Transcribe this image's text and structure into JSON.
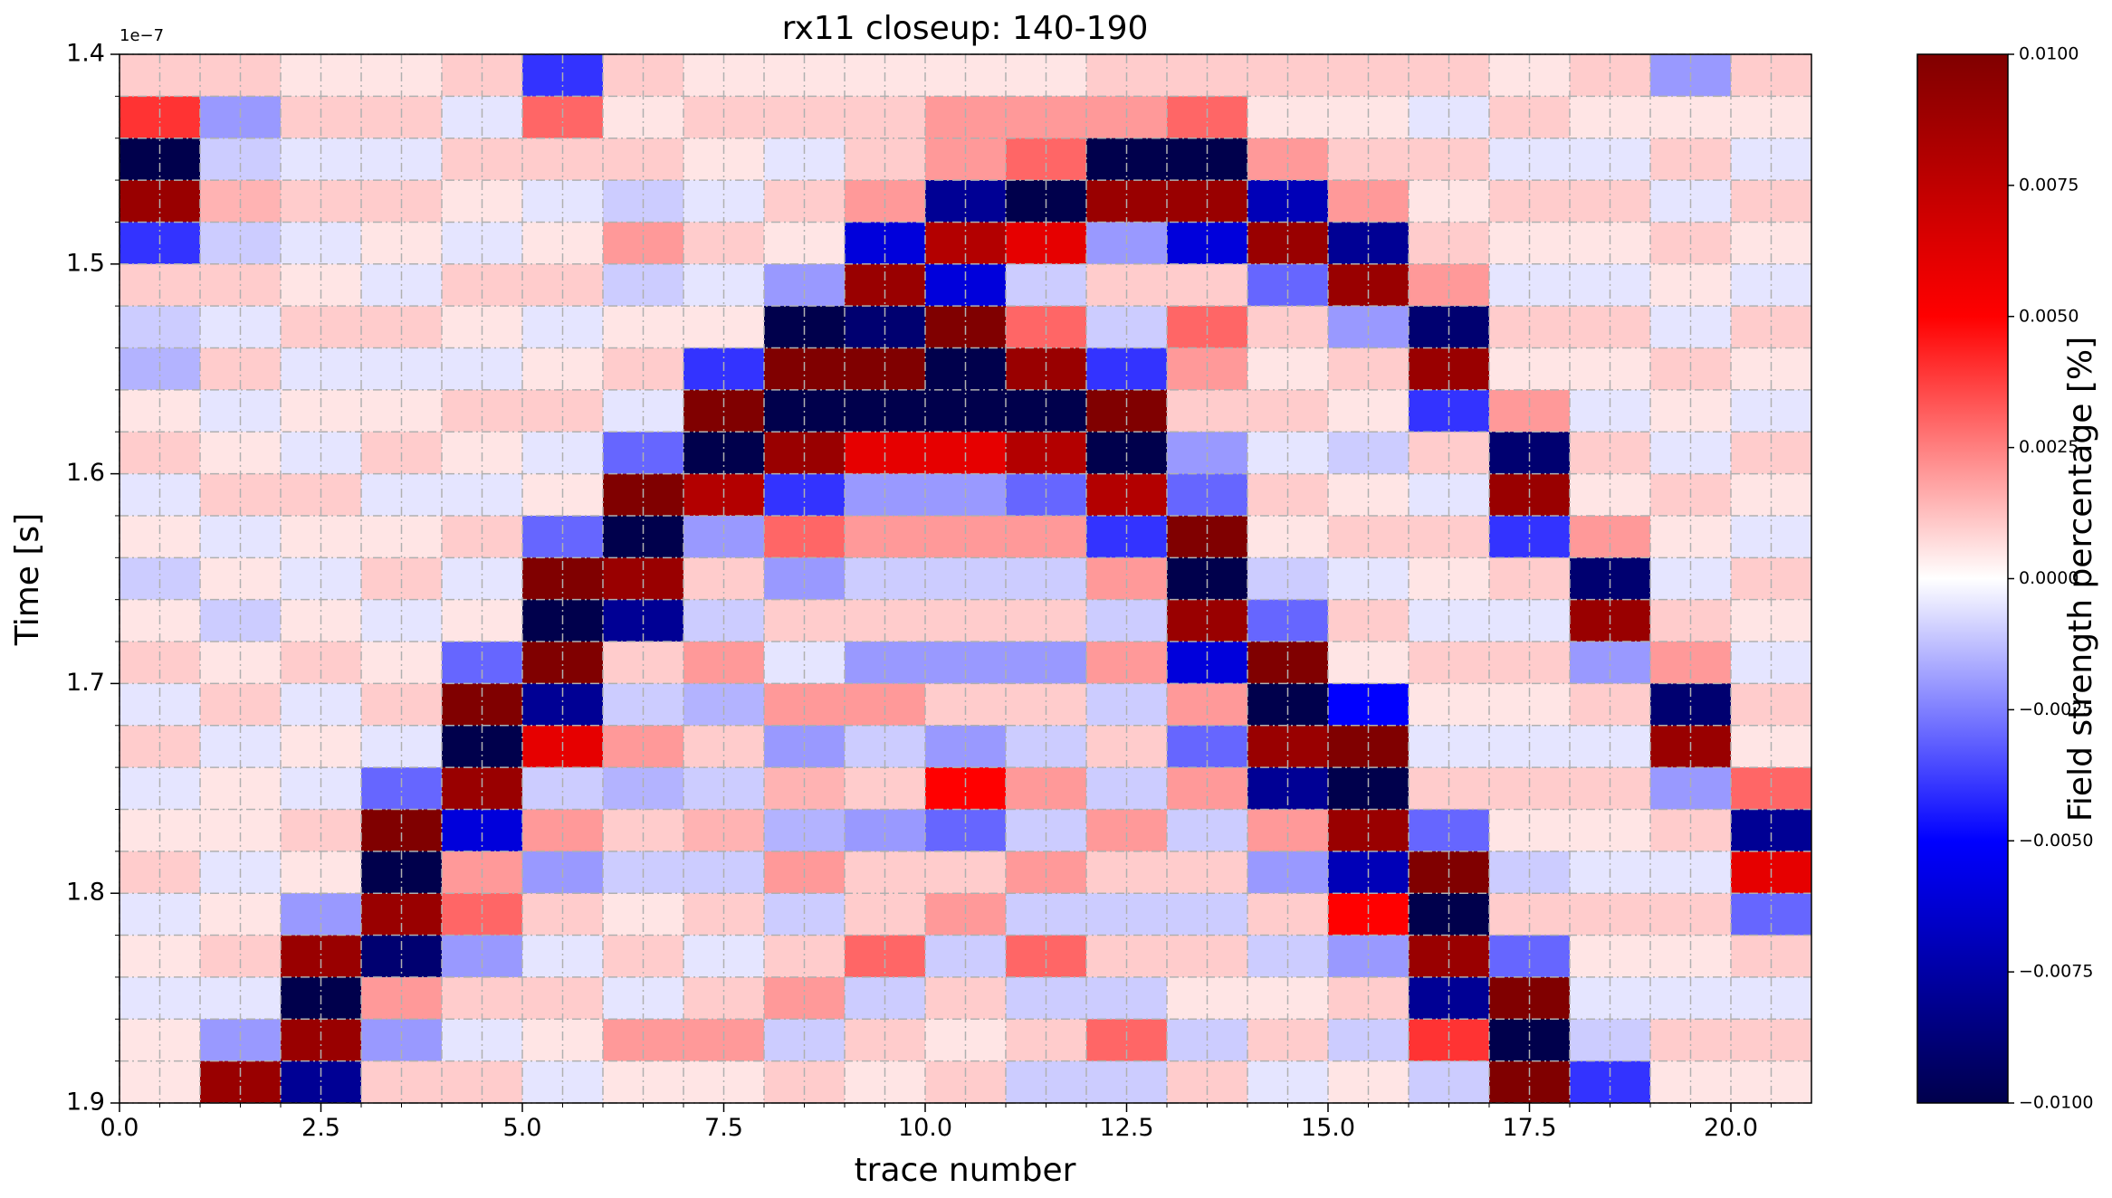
{
  "chart_data": {
    "type": "heatmap",
    "title": "rx11 closeup: 140-190",
    "xlabel": "trace number",
    "ylabel": "Time [s]",
    "y_offset_text": "1e−7",
    "colorbar_label": "Field strength percentage [%]",
    "colormap": [
      "#00004c",
      "#0000ff",
      "#ffffff",
      "#ff0000",
      "#800000"
    ],
    "clim": [
      -0.01,
      0.01
    ],
    "xlim": [
      0,
      21
    ],
    "ylim": [
      1.9e-07,
      1.4e-07
    ],
    "xticks": [
      {
        "value": 0,
        "label": "0.0"
      },
      {
        "value": 2.5,
        "label": "2.5"
      },
      {
        "value": 5,
        "label": "5.0"
      },
      {
        "value": 7.5,
        "label": "7.5"
      },
      {
        "value": 10,
        "label": "10.0"
      },
      {
        "value": 12.5,
        "label": "12.5"
      },
      {
        "value": 15,
        "label": "15.0"
      },
      {
        "value": 17.5,
        "label": "17.5"
      },
      {
        "value": 20,
        "label": "20.0"
      }
    ],
    "xminorticks": [
      0.5,
      1,
      1.5,
      2,
      3,
      3.5,
      4,
      4.5,
      5.5,
      6,
      6.5,
      7,
      8,
      8.5,
      9,
      9.5,
      10.5,
      11,
      11.5,
      12,
      13,
      13.5,
      14,
      14.5,
      15.5,
      16,
      16.5,
      17,
      18,
      18.5,
      19,
      19.5,
      20.5
    ],
    "yticks": [
      {
        "value": 1.4e-07,
        "label": "1.4"
      },
      {
        "value": 1.5e-07,
        "label": "1.5"
      },
      {
        "value": 1.6e-07,
        "label": "1.6"
      },
      {
        "value": 1.7e-07,
        "label": "1.7"
      },
      {
        "value": 1.8e-07,
        "label": "1.8"
      },
      {
        "value": 1.9e-07,
        "label": "1.9"
      }
    ],
    "yminorticks": [
      1.42e-07,
      1.44e-07,
      1.46e-07,
      1.48e-07,
      1.52e-07,
      1.54e-07,
      1.56e-07,
      1.58e-07,
      1.62e-07,
      1.64e-07,
      1.66e-07,
      1.68e-07,
      1.72e-07,
      1.74e-07,
      1.76e-07,
      1.78e-07,
      1.82e-07,
      1.84e-07,
      1.86e-07,
      1.88e-07
    ],
    "ctick": [
      {
        "value": -0.01,
        "label": "−0.0100"
      },
      {
        "value": -0.0075,
        "label": "−0.0075"
      },
      {
        "value": -0.005,
        "label": "−0.0050"
      },
      {
        "value": -0.0025,
        "label": "−0.0025"
      },
      {
        "value": 0,
        "label": "0.0000"
      },
      {
        "value": 0.0025,
        "label": "0.0025"
      },
      {
        "value": 0.005,
        "label": "0.0050"
      },
      {
        "value": 0.0075,
        "label": "0.0075"
      },
      {
        "value": 0.01,
        "label": "0.0100"
      }
    ],
    "grid": true,
    "x_edges": [
      0,
      1,
      2,
      3,
      4,
      5,
      6,
      7,
      8,
      9,
      10,
      11,
      12,
      13,
      14,
      15,
      16,
      17,
      18,
      19,
      20,
      21
    ],
    "y_edges": [
      1.4e-07,
      1.42e-07,
      1.44e-07,
      1.46e-07,
      1.48e-07,
      1.5e-07,
      1.52e-07,
      1.54e-07,
      1.56e-07,
      1.58e-07,
      1.6e-07,
      1.62e-07,
      1.64e-07,
      1.66e-07,
      1.68e-07,
      1.7e-07,
      1.72e-07,
      1.74e-07,
      1.76e-07,
      1.78e-07,
      1.8e-07,
      1.82e-07,
      1.84e-07,
      1.86e-07,
      1.88e-07,
      1.9e-07
    ],
    "values": [
      [
        0.001,
        0.004,
        -0.01,
        0.009,
        -0.004,
        0.001,
        -0.001,
        -0.0015,
        0.0005,
        0.001,
        -0.0005,
        0.0005,
        -0.001,
        0.0005,
        0.001,
        -0.0005,
        0.001,
        -0.0005,
        0.0005,
        0.001,
        -0.0005,
        0.0005,
        -0.0005,
        0.0005,
        0.0005
      ],
      [
        0.001,
        -0.002,
        -0.001,
        0.0015,
        -0.001,
        0.001,
        -0.0005,
        0.001,
        -0.0005,
        0.0005,
        0.001,
        -0.0005,
        0.0005,
        -0.001,
        0.0005,
        0.001,
        -0.0005,
        0.0005,
        0.0005,
        -0.0005,
        0.0005,
        0.001,
        -0.0005,
        -0.002,
        0.009
      ],
      [
        0.0005,
        0.001,
        -0.0005,
        0.001,
        -0.0005,
        0.0005,
        0.001,
        -0.0005,
        0.0005,
        -0.0005,
        0.001,
        0.0005,
        -0.0005,
        0.0005,
        0.001,
        -0.0005,
        0.0005,
        -0.0005,
        0.001,
        0.0005,
        -0.002,
        0.009,
        -0.01,
        0.009,
        -0.008
      ],
      [
        0.0005,
        0.001,
        -0.0005,
        0.001,
        0.0005,
        -0.0005,
        0.001,
        -0.0005,
        0.0005,
        0.001,
        -0.0005,
        0.0005,
        0.001,
        -0.0005,
        0.0005,
        0.001,
        -0.0005,
        -0.003,
        0.01,
        -0.01,
        0.009,
        -0.009,
        0.002,
        -0.002,
        0.001
      ],
      [
        0.001,
        -0.0005,
        0.001,
        0.0005,
        -0.0005,
        0.001,
        0.0005,
        -0.0005,
        0.001,
        0.0005,
        -0.0005,
        0.001,
        -0.0005,
        0.0005,
        -0.003,
        0.01,
        -0.01,
        0.009,
        -0.006,
        0.002,
        0.003,
        -0.002,
        0.001,
        -0.0005,
        0.001
      ],
      [
        -0.004,
        0.003,
        0.001,
        -0.0005,
        0.0005,
        0.001,
        -0.0005,
        0.0005,
        0.001,
        -0.0005,
        0.0005,
        -0.003,
        0.01,
        -0.01,
        0.01,
        -0.008,
        0.006,
        -0.001,
        0.002,
        -0.002,
        0.001,
        -0.0005,
        0.001,
        0.0005,
        -0.0005
      ],
      [
        0.001,
        0.0005,
        0.001,
        -0.001,
        0.002,
        -0.001,
        0.0005,
        0.001,
        -0.0005,
        -0.003,
        0.01,
        -0.01,
        0.009,
        -0.008,
        0.001,
        -0.001,
        0.002,
        -0.0015,
        0.001,
        -0.001,
        0.0005,
        0.001,
        -0.0005,
        0.002,
        0.0005
      ],
      [
        0.0005,
        0.001,
        0.0005,
        -0.0005,
        0.001,
        -0.0005,
        0.0005,
        -0.004,
        0.01,
        -0.01,
        0.008,
        -0.002,
        0.001,
        -0.001,
        0.002,
        -0.0015,
        0.001,
        -0.001,
        0.0015,
        -0.001,
        0.001,
        -0.0005,
        0.001,
        0.002,
        0.0005
      ],
      [
        0.0005,
        0.001,
        -0.0005,
        0.001,
        0.0005,
        -0.002,
        -0.01,
        0.01,
        -0.01,
        0.009,
        -0.004,
        0.003,
        -0.002,
        0.001,
        -0.0005,
        0.002,
        -0.002,
        0.0015,
        -0.0015,
        0.002,
        -0.001,
        0.001,
        0.002,
        -0.001,
        0.001
      ],
      [
        0.0005,
        0.001,
        0.001,
        0.002,
        -0.006,
        0.009,
        -0.009,
        0.01,
        -0.01,
        0.006,
        -0.002,
        0.002,
        -0.001,
        0.001,
        -0.002,
        0.002,
        -0.001,
        0.001,
        -0.002,
        0.001,
        0.001,
        0.003,
        -0.001,
        0.001,
        0.0005
      ],
      [
        0.0005,
        0.002,
        0.002,
        -0.008,
        0.008,
        -0.006,
        0.01,
        -0.01,
        -0.01,
        0.006,
        -0.002,
        0.002,
        -0.001,
        0.001,
        -0.002,
        0.001,
        -0.002,
        0.005,
        -0.003,
        0.001,
        0.002,
        -0.001,
        0.001,
        0.0005,
        0.001
      ],
      [
        0.0005,
        0.002,
        0.003,
        -0.01,
        0.006,
        -0.001,
        0.003,
        0.009,
        -0.01,
        0.008,
        -0.003,
        0.002,
        -0.001,
        0.001,
        -0.002,
        0.001,
        -0.001,
        0.002,
        -0.001,
        0.002,
        -0.001,
        0.003,
        -0.001,
        0.001,
        -0.001
      ],
      [
        0.001,
        0.002,
        -0.01,
        0.009,
        -0.002,
        0.001,
        -0.001,
        -0.004,
        0.01,
        -0.01,
        0.008,
        -0.004,
        0.002,
        -0.001,
        0.002,
        -0.001,
        0.001,
        -0.001,
        0.002,
        0.001,
        -0.001,
        0.001,
        -0.001,
        0.003,
        -0.001
      ],
      [
        0.001,
        0.003,
        -0.01,
        0.009,
        -0.006,
        0.001,
        0.003,
        0.002,
        0.001,
        -0.002,
        -0.003,
        0.01,
        -0.01,
        0.009,
        -0.006,
        0.002,
        -0.003,
        0.002,
        -0.001,
        0.001,
        -0.001,
        0.001,
        0.0005,
        -0.001,
        0.001
      ],
      [
        0.001,
        0.0005,
        0.002,
        -0.007,
        0.009,
        -0.003,
        0.001,
        0.0005,
        0.001,
        -0.0005,
        0.001,
        0.0005,
        -0.001,
        -0.003,
        0.01,
        -0.01,
        0.009,
        -0.008,
        0.002,
        -0.002,
        0.001,
        -0.001,
        0.0005,
        0.001,
        -0.0005
      ],
      [
        0.001,
        0.0005,
        0.001,
        0.002,
        -0.008,
        0.009,
        -0.002,
        0.001,
        0.0005,
        -0.001,
        0.0005,
        0.001,
        -0.0005,
        0.001,
        0.0005,
        -0.005,
        0.01,
        -0.01,
        0.009,
        -0.007,
        0.005,
        -0.002,
        0.001,
        -0.001,
        0.0005
      ],
      [
        0.001,
        -0.0005,
        0.001,
        0.0005,
        0.001,
        0.002,
        -0.009,
        0.009,
        -0.004,
        0.001,
        -0.0005,
        0.001,
        0.0005,
        -0.0005,
        0.001,
        0.0005,
        -0.0005,
        0.001,
        -0.003,
        0.01,
        -0.01,
        0.009,
        -0.008,
        0.004,
        -0.001
      ],
      [
        0.0005,
        0.001,
        -0.0005,
        0.001,
        0.0005,
        -0.0005,
        0.001,
        0.0005,
        0.002,
        -0.009,
        0.009,
        -0.004,
        0.001,
        -0.0005,
        0.001,
        0.0005,
        -0.0005,
        0.001,
        0.0005,
        -0.001,
        0.001,
        -0.003,
        0.01,
        -0.01,
        0.01
      ],
      [
        0.001,
        0.0005,
        -0.0005,
        0.001,
        0.0005,
        -0.0005,
        0.001,
        0.0005,
        -0.0005,
        0.001,
        0.0005,
        0.002,
        -0.009,
        0.009,
        -0.002,
        0.001,
        -0.0005,
        0.001,
        0.0005,
        -0.0005,
        0.001,
        0.0005,
        -0.0005,
        -0.001,
        -0.004
      ],
      [
        -0.002,
        0.0005,
        0.001,
        -0.0005,
        0.001,
        0.0005,
        -0.0005,
        0.001,
        0.0005,
        -0.0005,
        0.001,
        0.0005,
        -0.0005,
        0.001,
        0.002,
        -0.009,
        0.009,
        -0.002,
        0.001,
        -0.0005,
        0.001,
        0.0005,
        -0.0005,
        0.001,
        0.0005
      ],
      [
        0.001,
        0.0005,
        -0.0005,
        0.001,
        0.0005,
        -0.0005,
        0.001,
        0.0005,
        -0.0005,
        0.001,
        0.0005,
        -0.0005,
        0.001,
        0.0005,
        -0.0005,
        0.001,
        0.0005,
        0.003,
        -0.008,
        0.006,
        -0.003,
        0.001,
        -0.0005,
        0.001,
        0.0005
      ]
    ]
  }
}
